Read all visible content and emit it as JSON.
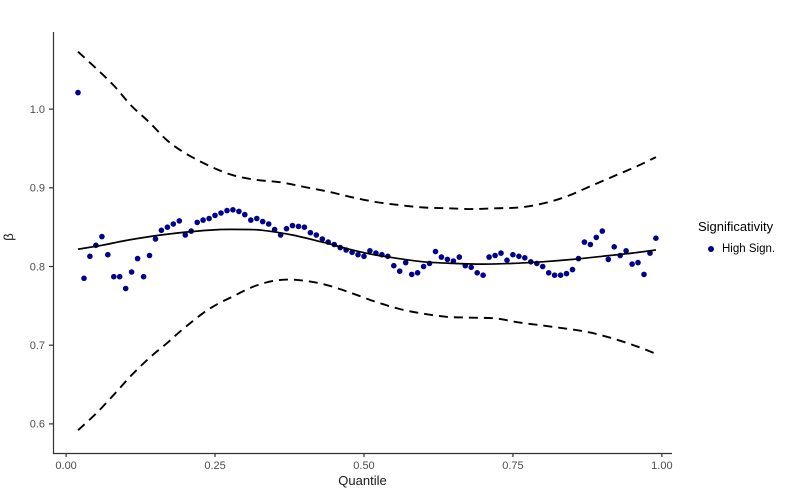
{
  "legend": {
    "title": "Significativity",
    "items": [
      {
        "label": "High Sign.",
        "marker_color": "#00008B"
      }
    ]
  },
  "chart_data": {
    "type": "scatter",
    "title": "",
    "xlabel": "Quantile",
    "ylabel": "β",
    "xlim": [
      -0.022,
      1.017
    ],
    "ylim": [
      0.563,
      1.098
    ],
    "x_ticks": [
      0.0,
      0.25,
      0.5,
      0.75,
      1.0
    ],
    "x_tick_labels": [
      "0.00",
      "0.25",
      "0.50",
      "0.75",
      "1.00"
    ],
    "y_ticks": [
      0.6,
      0.7,
      0.8,
      0.9,
      1.0
    ],
    "y_tick_labels": [
      "0.6",
      "0.7",
      "0.8",
      "0.9",
      "1.0"
    ],
    "grid": false,
    "legend_position": "right",
    "colors": {
      "point": "#00008B",
      "line": "#000000",
      "band": "#000000",
      "axis": "#333333",
      "tick_text": "#4d4d4d"
    },
    "series": [
      {
        "name": "High Sign.",
        "type": "scatter",
        "color": "#00008B",
        "x": [
          0.02,
          0.03,
          0.04,
          0.05,
          0.06,
          0.07,
          0.08,
          0.09,
          0.1,
          0.11,
          0.12,
          0.13,
          0.14,
          0.15,
          0.16,
          0.17,
          0.18,
          0.19,
          0.2,
          0.21,
          0.22,
          0.23,
          0.24,
          0.25,
          0.26,
          0.27,
          0.28,
          0.29,
          0.3,
          0.31,
          0.32,
          0.33,
          0.34,
          0.35,
          0.36,
          0.37,
          0.38,
          0.39,
          0.4,
          0.41,
          0.42,
          0.43,
          0.44,
          0.45,
          0.46,
          0.47,
          0.48,
          0.49,
          0.5,
          0.51,
          0.52,
          0.53,
          0.54,
          0.55,
          0.56,
          0.57,
          0.58,
          0.59,
          0.6,
          0.61,
          0.62,
          0.63,
          0.64,
          0.65,
          0.66,
          0.67,
          0.68,
          0.69,
          0.7,
          0.71,
          0.72,
          0.73,
          0.74,
          0.75,
          0.76,
          0.77,
          0.78,
          0.79,
          0.8,
          0.81,
          0.82,
          0.83,
          0.84,
          0.85,
          0.86,
          0.87,
          0.88,
          0.89,
          0.9,
          0.91,
          0.92,
          0.93,
          0.94,
          0.95,
          0.96,
          0.97,
          0.98,
          0.99
        ],
        "y": [
          1.021,
          0.785,
          0.813,
          0.827,
          0.838,
          0.815,
          0.787,
          0.787,
          0.772,
          0.793,
          0.81,
          0.787,
          0.814,
          0.835,
          0.846,
          0.85,
          0.854,
          0.858,
          0.84,
          0.845,
          0.856,
          0.859,
          0.861,
          0.865,
          0.868,
          0.871,
          0.872,
          0.87,
          0.866,
          0.859,
          0.861,
          0.857,
          0.854,
          0.847,
          0.84,
          0.848,
          0.852,
          0.851,
          0.85,
          0.843,
          0.84,
          0.835,
          0.831,
          0.828,
          0.824,
          0.821,
          0.818,
          0.815,
          0.813,
          0.82,
          0.817,
          0.815,
          0.813,
          0.801,
          0.794,
          0.805,
          0.79,
          0.792,
          0.8,
          0.804,
          0.819,
          0.812,
          0.809,
          0.807,
          0.812,
          0.801,
          0.799,
          0.792,
          0.789,
          0.812,
          0.814,
          0.817,
          0.808,
          0.815,
          0.813,
          0.811,
          0.806,
          0.804,
          0.8,
          0.792,
          0.789,
          0.789,
          0.791,
          0.796,
          0.81,
          0.831,
          0.828,
          0.837,
          0.845,
          0.809,
          0.825,
          0.814,
          0.82,
          0.803,
          0.805,
          0.79,
          0.817,
          0.836
        ]
      },
      {
        "name": "smooth-fit",
        "type": "line",
        "style": "solid",
        "color": "#000000",
        "x": [
          0.02,
          0.06,
          0.1,
          0.14,
          0.18,
          0.22,
          0.26,
          0.3,
          0.33,
          0.38,
          0.43,
          0.47,
          0.51,
          0.55,
          0.6,
          0.65,
          0.7,
          0.75,
          0.8,
          0.85,
          0.9,
          0.95,
          0.99
        ],
        "y": [
          0.822,
          0.827,
          0.833,
          0.838,
          0.842,
          0.845,
          0.847,
          0.847,
          0.846,
          0.84,
          0.831,
          0.823,
          0.816,
          0.811,
          0.806,
          0.804,
          0.803,
          0.804,
          0.806,
          0.809,
          0.813,
          0.817,
          0.821
        ]
      },
      {
        "name": "upper-confidence-band",
        "type": "line",
        "style": "dashed",
        "color": "#000000",
        "x": [
          0.02,
          0.05,
          0.08,
          0.11,
          0.14,
          0.17,
          0.2,
          0.24,
          0.28,
          0.32,
          0.36,
          0.4,
          0.44,
          0.48,
          0.52,
          0.56,
          0.6,
          0.64,
          0.68,
          0.72,
          0.76,
          0.8,
          0.84,
          0.88,
          0.92,
          0.96,
          0.99
        ],
        "y": [
          1.073,
          1.052,
          1.03,
          1.004,
          0.983,
          0.96,
          0.944,
          0.928,
          0.916,
          0.91,
          0.907,
          0.901,
          0.895,
          0.888,
          0.882,
          0.878,
          0.875,
          0.874,
          0.873,
          0.874,
          0.875,
          0.88,
          0.889,
          0.902,
          0.915,
          0.928,
          0.939
        ]
      },
      {
        "name": "lower-confidence-band",
        "type": "line",
        "style": "dashed",
        "color": "#000000",
        "x": [
          0.02,
          0.05,
          0.08,
          0.11,
          0.14,
          0.17,
          0.2,
          0.24,
          0.28,
          0.32,
          0.36,
          0.4,
          0.44,
          0.48,
          0.52,
          0.56,
          0.6,
          0.64,
          0.68,
          0.72,
          0.76,
          0.8,
          0.84,
          0.88,
          0.92,
          0.96,
          0.99
        ],
        "y": [
          0.592,
          0.613,
          0.637,
          0.662,
          0.684,
          0.703,
          0.723,
          0.746,
          0.762,
          0.776,
          0.783,
          0.782,
          0.776,
          0.766,
          0.755,
          0.746,
          0.74,
          0.736,
          0.735,
          0.734,
          0.729,
          0.725,
          0.721,
          0.716,
          0.708,
          0.698,
          0.689
        ]
      }
    ]
  }
}
